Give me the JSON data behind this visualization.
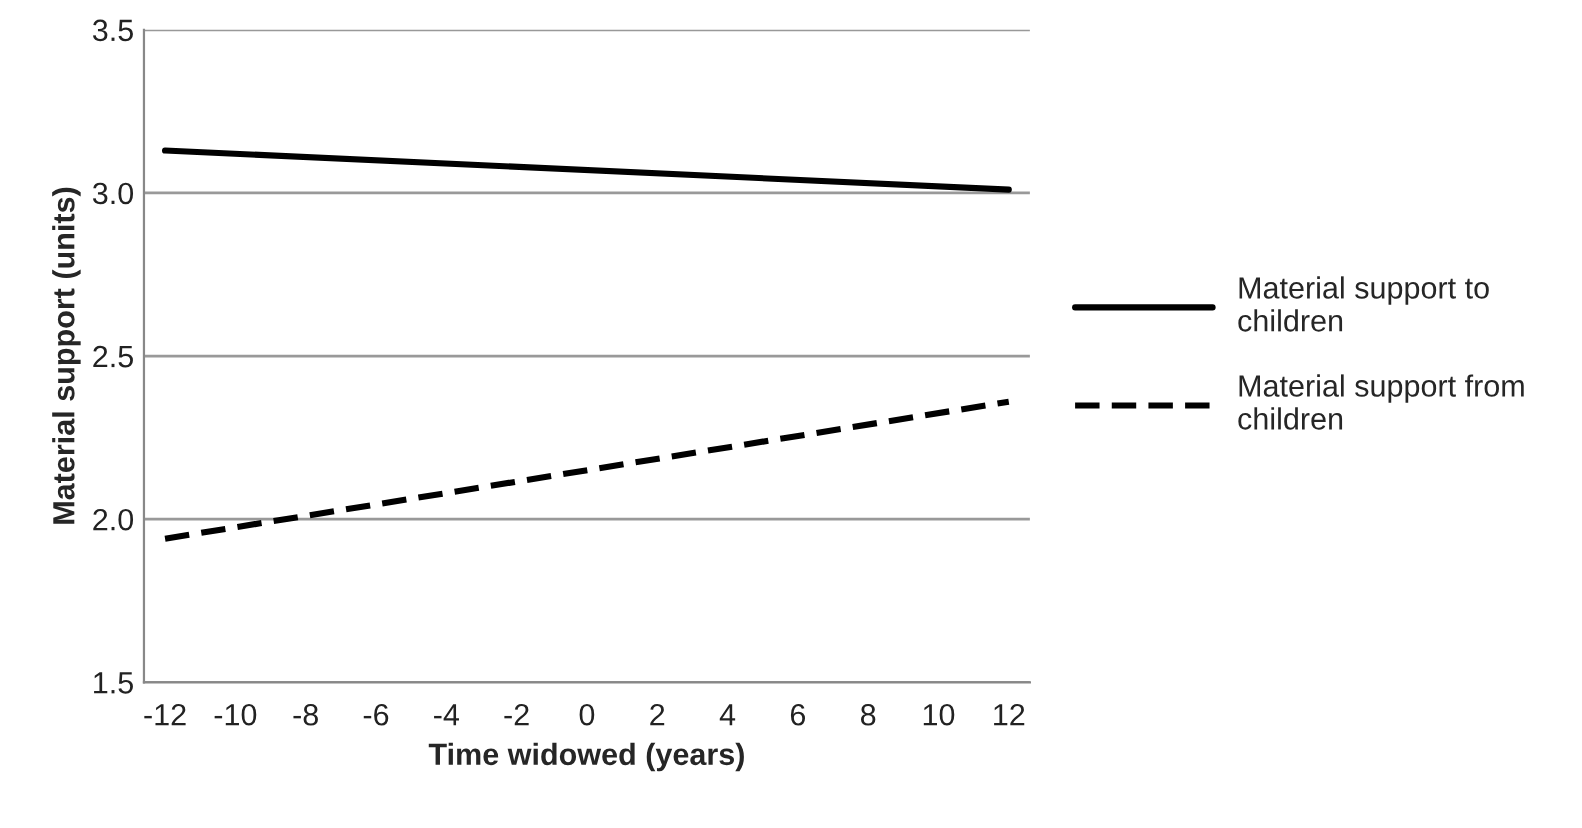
{
  "chart_data": {
    "type": "line",
    "xlabel": "Time widowed (years)",
    "ylabel": "Material support (units)",
    "x": [
      -12,
      12
    ],
    "series": [
      {
        "name": "Material support to\nchildren",
        "color": "#000000",
        "line_style": "solid",
        "values": [
          3.13,
          3.01
        ]
      },
      {
        "name": "Material support from\nchildren",
        "color": "#000000",
        "line_style": "dashed",
        "values": [
          1.94,
          2.36
        ]
      }
    ],
    "xlim": [
      -12.6,
      12.6
    ],
    "xticks": [
      -12,
      -10,
      -8,
      -6,
      -4,
      -2,
      0,
      2,
      4,
      6,
      8,
      10,
      12
    ],
    "ylim": [
      1.5,
      3.5
    ],
    "yticks": [
      {
        "value": 1.5,
        "label": "1.5"
      },
      {
        "value": 2.0,
        "label": "2.0"
      },
      {
        "value": 2.5,
        "label": "2.5"
      },
      {
        "value": 3.0,
        "label": "3.0"
      },
      {
        "value": 3.5,
        "label": "3.5"
      }
    ],
    "grid": "y",
    "legend": "right",
    "marker": "none"
  }
}
